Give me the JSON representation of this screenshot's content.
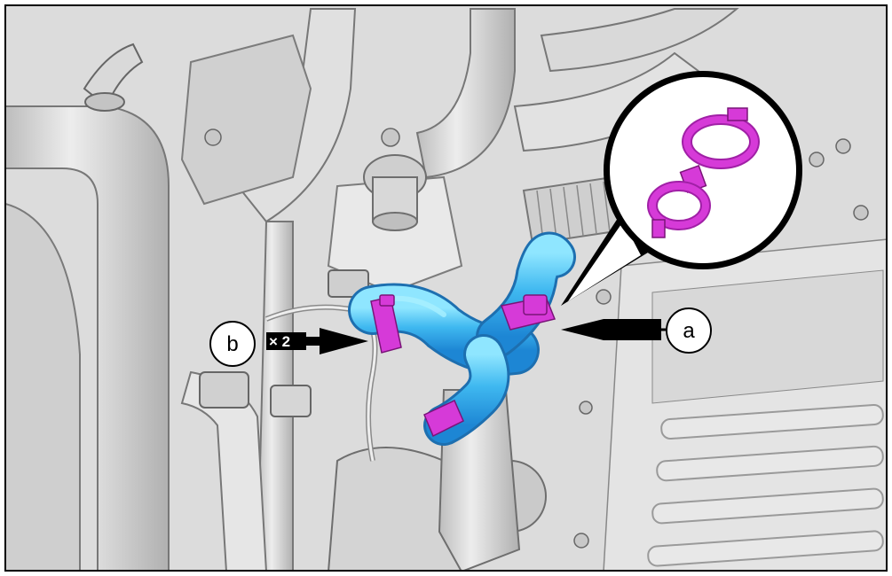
{
  "callouts": {
    "a": {
      "label": "a"
    },
    "b": {
      "label": "b",
      "quantity": "× 2"
    }
  },
  "colors": {
    "hose": "#3fb8f0",
    "hose_highlight": "#7fe0ff",
    "clamp": "#d63ad8",
    "engine_gray": "#d6d6d6",
    "line": "#6e6e6e"
  }
}
